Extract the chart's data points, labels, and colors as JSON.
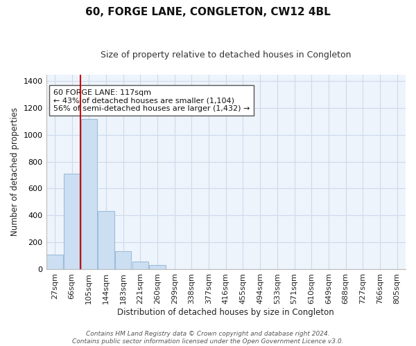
{
  "title": "60, FORGE LANE, CONGLETON, CW12 4BL",
  "subtitle": "Size of property relative to detached houses in Congleton",
  "xlabel": "Distribution of detached houses by size in Congleton",
  "ylabel": "Number of detached properties",
  "bar_labels": [
    "27sqm",
    "66sqm",
    "105sqm",
    "144sqm",
    "183sqm",
    "221sqm",
    "260sqm",
    "299sqm",
    "338sqm",
    "377sqm",
    "416sqm",
    "455sqm",
    "494sqm",
    "533sqm",
    "571sqm",
    "610sqm",
    "649sqm",
    "688sqm",
    "727sqm",
    "766sqm",
    "805sqm"
  ],
  "bar_values": [
    110,
    710,
    1120,
    430,
    135,
    57,
    32,
    0,
    0,
    0,
    0,
    0,
    0,
    0,
    0,
    0,
    0,
    0,
    0,
    0,
    0
  ],
  "bar_color": "#ccdff2",
  "bar_edge_color": "#9bbdd9",
  "vline_x_index": 1.5,
  "vline_color": "#cc0000",
  "ylim": [
    0,
    1450
  ],
  "yticks": [
    0,
    200,
    400,
    600,
    800,
    1000,
    1200,
    1400
  ],
  "annotation_title": "60 FORGE LANE: 117sqm",
  "annotation_line1": "← 43% of detached houses are smaller (1,104)",
  "annotation_line2": "56% of semi-detached houses are larger (1,432) →",
  "annotation_box_color": "#ffffff",
  "annotation_box_edge": "#555555",
  "footer_line1": "Contains HM Land Registry data © Crown copyright and database right 2024.",
  "footer_line2": "Contains public sector information licensed under the Open Government Licence v3.0.",
  "background_color": "#ffffff",
  "grid_color": "#ccdaec",
  "fig_width": 6.0,
  "fig_height": 5.0,
  "title_fontsize": 11,
  "subtitle_fontsize": 9,
  "axis_label_fontsize": 8.5,
  "tick_fontsize": 8,
  "annot_fontsize": 8,
  "footer_fontsize": 6.5
}
